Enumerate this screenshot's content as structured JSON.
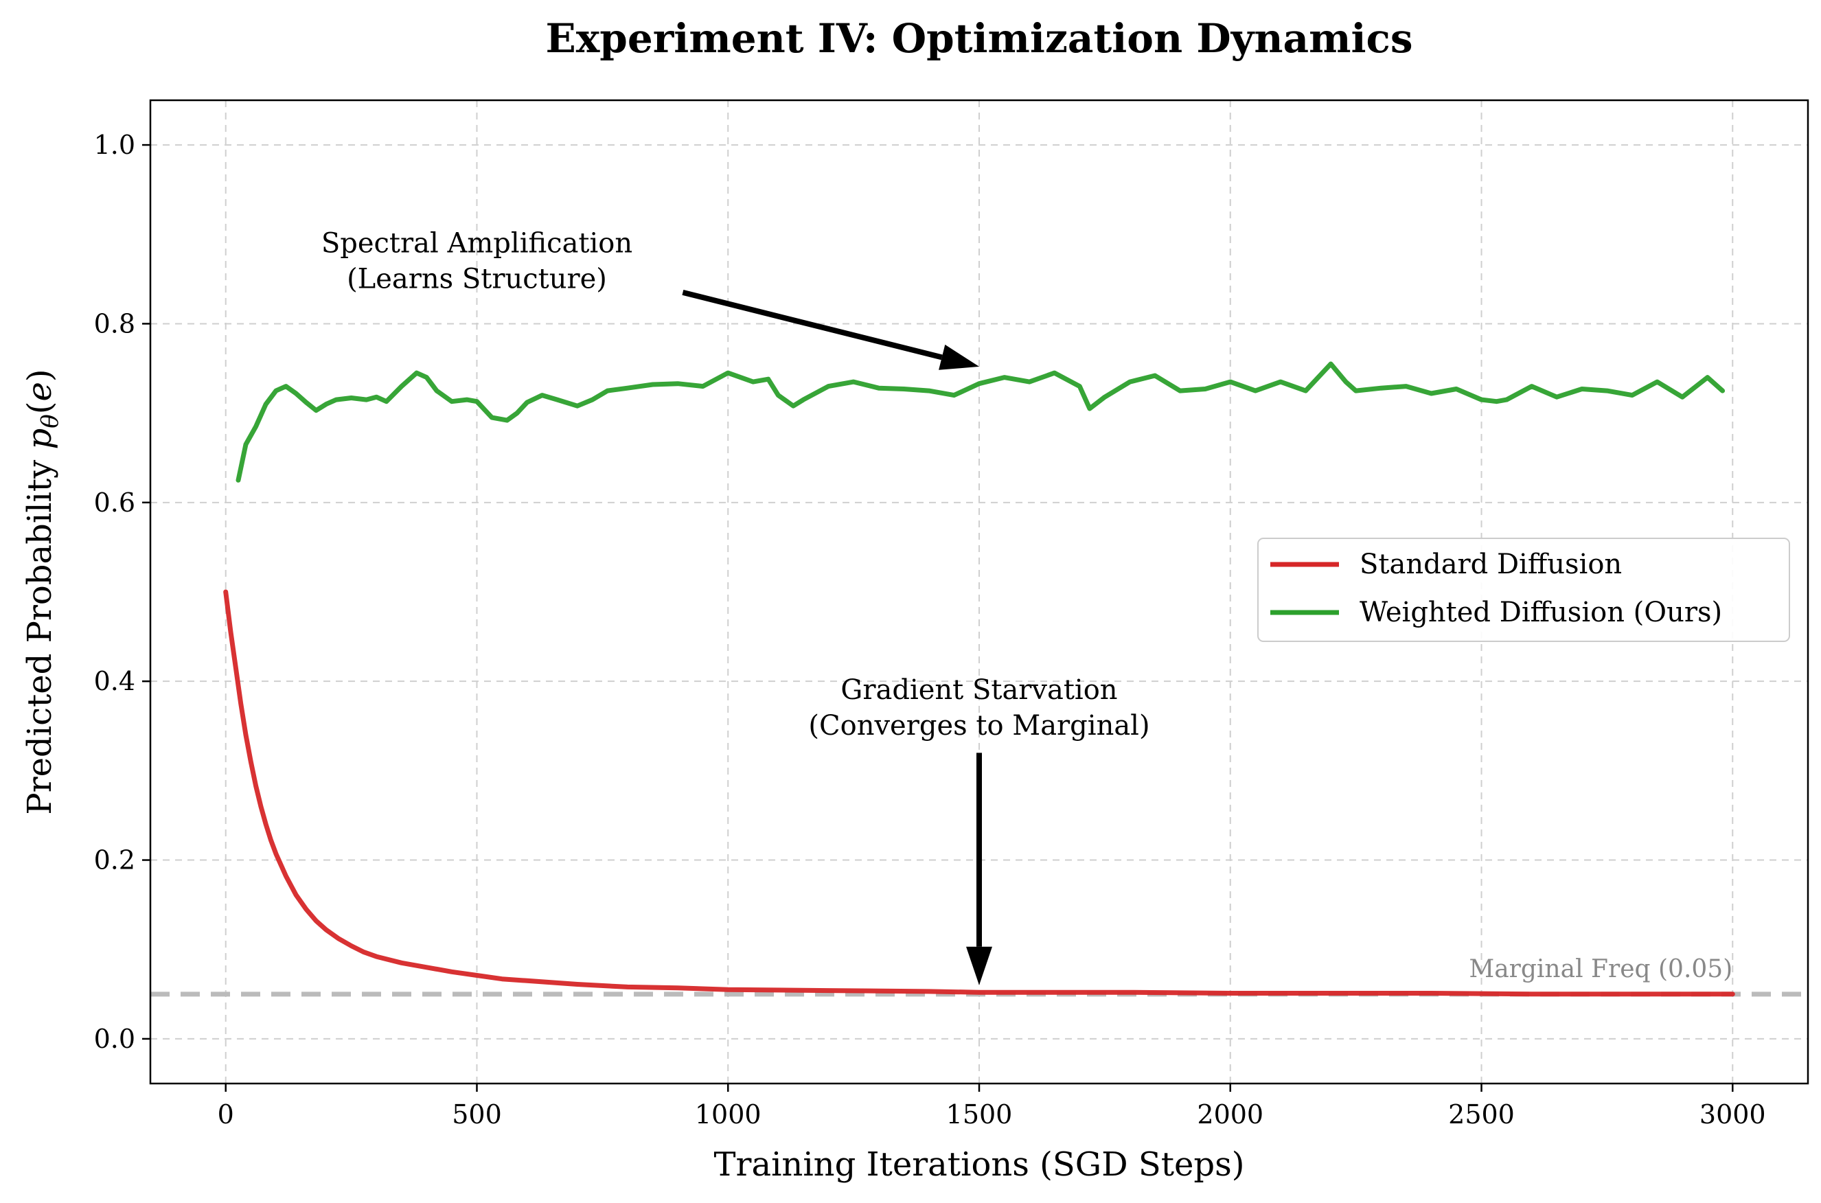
{
  "chart_data": {
    "type": "line",
    "title": "Experiment IV: Optimization Dynamics",
    "xlabel": "Training Iterations (SGD Steps)",
    "ylabel": "Predicted Probability p_θ(e)",
    "xlim": [
      -150,
      3150
    ],
    "ylim": [
      -0.05,
      1.05
    ],
    "xticks": [
      0,
      500,
      1000,
      1500,
      2000,
      2500,
      3000
    ],
    "yticks": [
      0.0,
      0.2,
      0.4,
      0.6,
      0.8,
      1.0
    ],
    "xtick_labels": [
      "0",
      "500",
      "1000",
      "1500",
      "2000",
      "2500",
      "3000"
    ],
    "ytick_labels": [
      "0.0",
      "0.2",
      "0.4",
      "0.6",
      "0.8",
      "1.0"
    ],
    "grid": true,
    "legend_position": "center-right",
    "series": [
      {
        "name": "Standard Diffusion",
        "color": "#d62728",
        "x": [
          0,
          10,
          20,
          30,
          40,
          50,
          60,
          70,
          80,
          90,
          100,
          120,
          140,
          160,
          180,
          200,
          225,
          250,
          275,
          300,
          350,
          400,
          450,
          500,
          550,
          600,
          700,
          800,
          900,
          1000,
          1200,
          1400,
          1500,
          1600,
          1800,
          2000,
          2200,
          2400,
          2600,
          2800,
          3000
        ],
        "y": [
          0.5,
          0.455,
          0.415,
          0.375,
          0.34,
          0.31,
          0.283,
          0.26,
          0.24,
          0.222,
          0.207,
          0.182,
          0.161,
          0.145,
          0.132,
          0.122,
          0.112,
          0.104,
          0.097,
          0.092,
          0.085,
          0.08,
          0.075,
          0.071,
          0.067,
          0.065,
          0.061,
          0.058,
          0.057,
          0.055,
          0.054,
          0.053,
          0.052,
          0.052,
          0.052,
          0.051,
          0.051,
          0.051,
          0.05,
          0.05,
          0.05
        ]
      },
      {
        "name": "Weighted Diffusion (Ours)",
        "color": "#2ca02c",
        "x": [
          25,
          40,
          60,
          80,
          100,
          120,
          140,
          160,
          180,
          200,
          220,
          250,
          280,
          300,
          320,
          350,
          380,
          400,
          420,
          450,
          480,
          500,
          530,
          560,
          580,
          600,
          630,
          660,
          700,
          730,
          760,
          800,
          850,
          900,
          950,
          1000,
          1050,
          1080,
          1100,
          1130,
          1150,
          1200,
          1250,
          1300,
          1350,
          1400,
          1450,
          1500,
          1550,
          1600,
          1650,
          1700,
          1720,
          1750,
          1800,
          1850,
          1900,
          1950,
          2000,
          2050,
          2100,
          2150,
          2200,
          2230,
          2250,
          2300,
          2350,
          2400,
          2450,
          2500,
          2530,
          2550,
          2600,
          2650,
          2700,
          2750,
          2800,
          2850,
          2900,
          2950,
          2980
        ],
        "y": [
          0.625,
          0.665,
          0.685,
          0.71,
          0.725,
          0.73,
          0.722,
          0.712,
          0.703,
          0.71,
          0.715,
          0.717,
          0.715,
          0.718,
          0.713,
          0.73,
          0.745,
          0.74,
          0.725,
          0.713,
          0.715,
          0.713,
          0.695,
          0.692,
          0.7,
          0.712,
          0.72,
          0.715,
          0.708,
          0.715,
          0.725,
          0.728,
          0.732,
          0.733,
          0.73,
          0.745,
          0.735,
          0.738,
          0.72,
          0.708,
          0.715,
          0.73,
          0.735,
          0.728,
          0.727,
          0.725,
          0.72,
          0.733,
          0.74,
          0.735,
          0.745,
          0.73,
          0.705,
          0.718,
          0.735,
          0.742,
          0.725,
          0.727,
          0.735,
          0.725,
          0.735,
          0.725,
          0.755,
          0.735,
          0.725,
          0.728,
          0.73,
          0.722,
          0.727,
          0.715,
          0.713,
          0.715,
          0.73,
          0.718,
          0.727,
          0.725,
          0.72,
          0.735,
          0.718,
          0.74,
          0.725
        ]
      }
    ],
    "reference_line": {
      "y": 0.05,
      "label": "Marginal Freq (0.05)",
      "color": "#bbbbbb"
    },
    "annotations": [
      {
        "lines": [
          "Spectral Amplification",
          "(Learns Structure)"
        ],
        "text_x": 500,
        "text_y": 0.88,
        "arrow_from": [
          910,
          0.835
        ],
        "arrow_to": [
          1500,
          0.752
        ]
      },
      {
        "lines": [
          "Gradient Starvation",
          "(Converges to Marginal)"
        ],
        "text_x": 1500,
        "text_y": 0.38,
        "arrow_from": [
          1500,
          0.32
        ],
        "arrow_to": [
          1500,
          0.06
        ]
      }
    ]
  }
}
